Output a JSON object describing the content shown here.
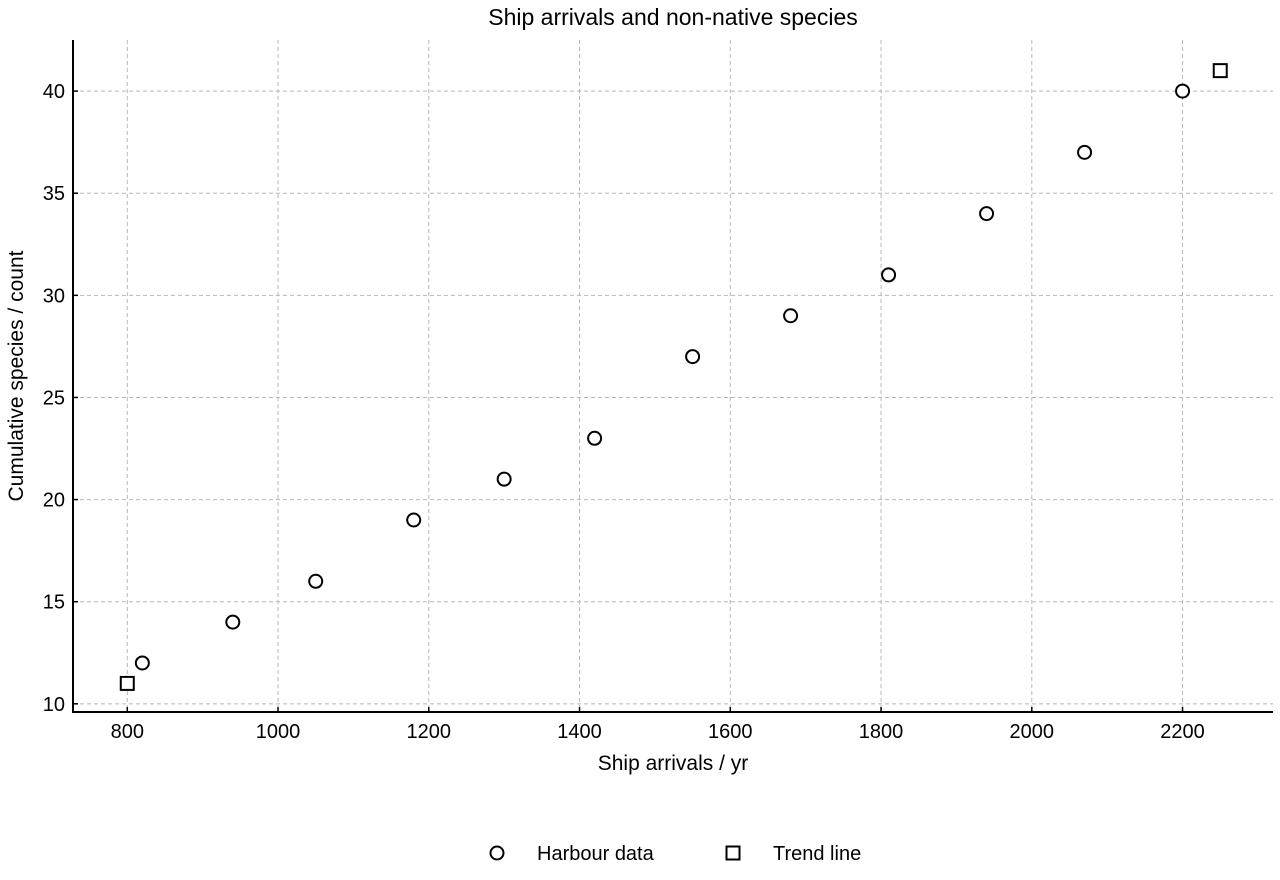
{
  "chart_data": {
    "type": "scatter",
    "title": "Ship arrivals and non-native species",
    "xlabel": "Ship arrivals / yr",
    "ylabel": "Cumulative species / count",
    "xlim": [
      728,
      2320
    ],
    "ylim": [
      9.6,
      42.5
    ],
    "xticks": [
      800,
      1000,
      1200,
      1400,
      1600,
      1800,
      2000,
      2200
    ],
    "yticks": [
      10,
      15,
      20,
      25,
      30,
      35,
      40
    ],
    "grid": true,
    "legend_position": "bottom-center",
    "series": [
      {
        "name": "Harbour data",
        "marker": "circle",
        "x": [
          820,
          940,
          1050,
          1180,
          1300,
          1420,
          1550,
          1680,
          1810,
          1940,
          2070,
          2200
        ],
        "y": [
          12,
          14,
          16,
          19,
          21,
          23,
          27,
          29,
          31,
          34,
          37,
          40
        ]
      },
      {
        "name": "Trend line",
        "marker": "square",
        "x": [
          800,
          2250
        ],
        "y": [
          11,
          41
        ]
      }
    ],
    "colors": {
      "marker_stroke": "#000000",
      "marker_fill": "#ffffff",
      "grid": "#b8b8b8"
    }
  }
}
